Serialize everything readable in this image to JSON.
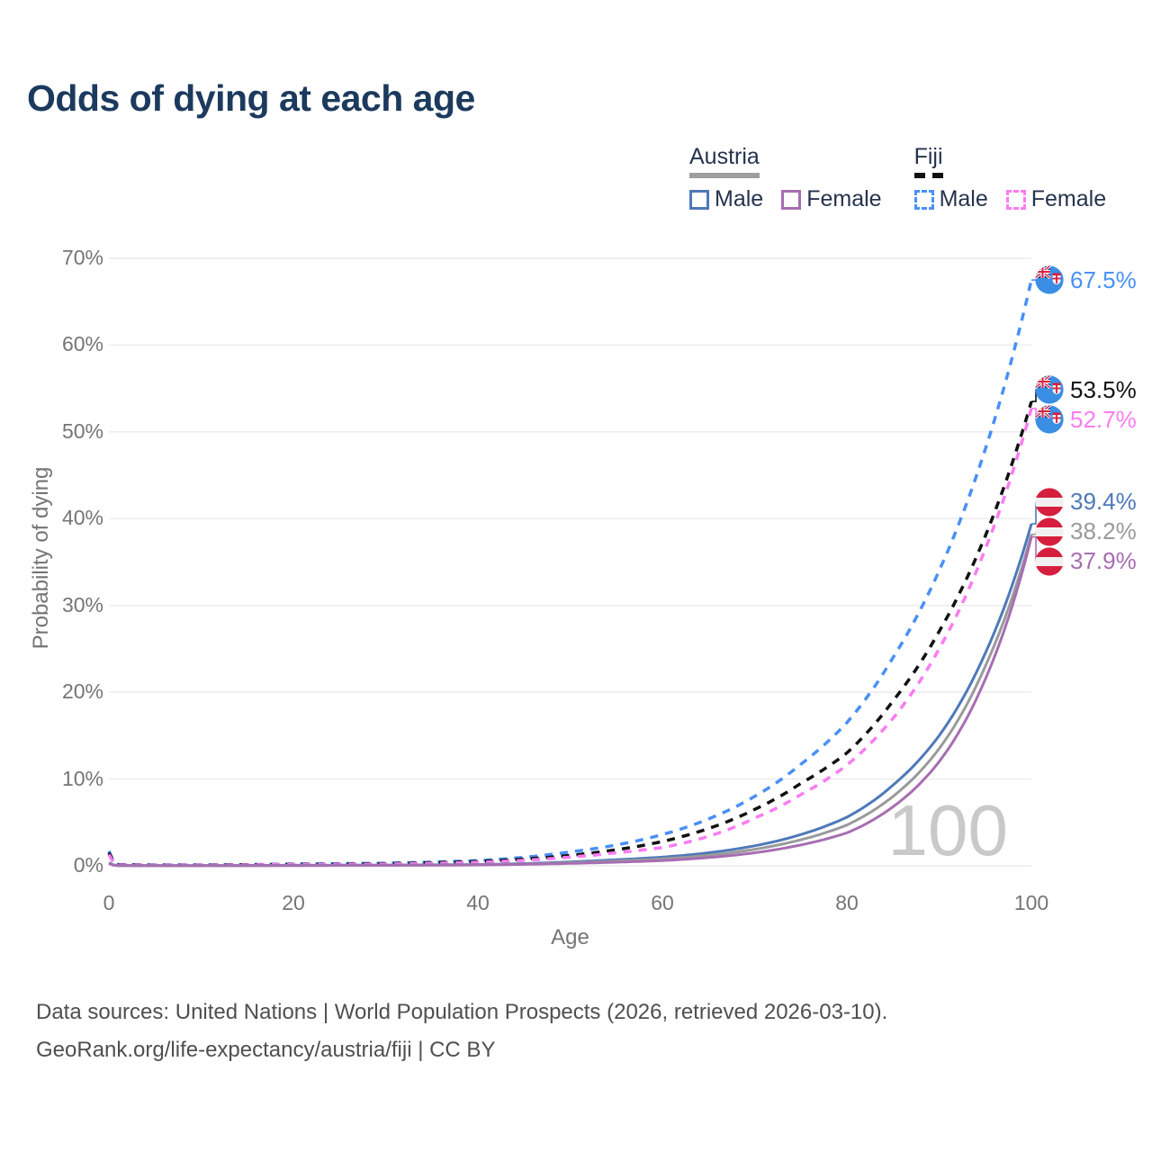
{
  "title": "Odds of dying at each age",
  "legend": {
    "groups": [
      {
        "label": "Austria",
        "line_style": "solid",
        "line_color": "#9a9a9a",
        "items": [
          {
            "label": "Male",
            "color": "#4e79b8"
          },
          {
            "label": "Female",
            "color": "#a76db2"
          }
        ]
      },
      {
        "label": "Fiji",
        "line_style": "dashed",
        "line_color": "#111111",
        "items": [
          {
            "label": "Male",
            "color": "#4a90f5"
          },
          {
            "label": "Female",
            "color": "#fb7cf2"
          }
        ]
      }
    ]
  },
  "axes": {
    "x_label": "Age",
    "y_label": "Probability of dying"
  },
  "watermark_age": "100",
  "footer": {
    "line1": "Data sources: United Nations | World Population Prospects (2026, retrieved 2026-03-10).",
    "line2": "GeoRank.org/life-expectancy/austria/fiji | CC BY"
  },
  "colors": {
    "title": "#1c3a5e",
    "tick_text": "#757575",
    "gridline": "#ececec",
    "watermark": "#c9c9c9",
    "austria_flag_red": "#d61f3e",
    "fiji_flag_blue": "#3a8ee4"
  },
  "chart_data": {
    "type": "line",
    "title": "Odds of dying at each age",
    "xlabel": "Age",
    "ylabel": "Probability of dying",
    "x_range": [
      0,
      100
    ],
    "y_range_pct": [
      0,
      70
    ],
    "x_ticks": [
      0,
      20,
      40,
      60,
      80,
      100
    ],
    "y_ticks_pct": [
      0,
      10,
      20,
      30,
      40,
      50,
      60,
      70
    ],
    "grid": "horizontal-only",
    "legend_position": "top-right",
    "ages": [
      0,
      1,
      5,
      10,
      20,
      30,
      40,
      50,
      55,
      60,
      65,
      70,
      75,
      80,
      85,
      90,
      95,
      100
    ],
    "series": [
      {
        "id": "fiji-male",
        "name": "Fiji Male",
        "country": "Fiji",
        "sex": "Male",
        "color": "#4a90f5",
        "dash": true,
        "flag": "fiji",
        "end_label": "67.5%",
        "values_pct": [
          1.7,
          0.15,
          0.1,
          0.1,
          0.2,
          0.3,
          0.6,
          1.6,
          2.4,
          3.6,
          5.4,
          8.0,
          11.7,
          16.5,
          24,
          34,
          48,
          67.5
        ]
      },
      {
        "id": "fiji-both",
        "name": "Fiji Both sexes",
        "country": "Fiji",
        "sex": "Both",
        "color": "#111111",
        "dash": true,
        "flag": "fiji",
        "end_label": "53.5%",
        "values_pct": [
          1.5,
          0.12,
          0.09,
          0.09,
          0.17,
          0.25,
          0.5,
          1.2,
          1.85,
          2.8,
          4.3,
          6.5,
          9.5,
          13.0,
          19,
          27,
          38,
          53.5
        ]
      },
      {
        "id": "fiji-female",
        "name": "Fiji Female",
        "country": "Fiji",
        "sex": "Female",
        "color": "#fb7cf2",
        "dash": true,
        "flag": "fiji",
        "end_label": "52.7%",
        "values_pct": [
          1.3,
          0.1,
          0.08,
          0.08,
          0.14,
          0.2,
          0.4,
          1.0,
          1.5,
          2.1,
          3.4,
          5.5,
          8.2,
          11.6,
          17,
          25,
          36.5,
          52.7
        ]
      },
      {
        "id": "austria-male",
        "name": "Austria Male",
        "country": "Austria",
        "sex": "Male",
        "color": "#4e79b8",
        "dash": false,
        "flag": "austria",
        "end_label": "39.4%",
        "values_pct": [
          0.35,
          0.03,
          0.02,
          0.02,
          0.06,
          0.08,
          0.15,
          0.45,
          0.7,
          1.0,
          1.5,
          2.3,
          3.6,
          5.6,
          9.3,
          15,
          24.5,
          39.4
        ]
      },
      {
        "id": "austria-both",
        "name": "Austria Both sexes",
        "country": "Austria",
        "sex": "Both",
        "color": "#9a9a9a",
        "dash": false,
        "flag": "austria",
        "end_label": "38.2%",
        "values_pct": [
          0.3,
          0.025,
          0.015,
          0.015,
          0.045,
          0.06,
          0.12,
          0.35,
          0.55,
          0.8,
          1.2,
          1.9,
          3.0,
          4.7,
          8.0,
          13.5,
          23,
          38.2
        ]
      },
      {
        "id": "austria-female",
        "name": "Austria Female",
        "country": "Austria",
        "sex": "Female",
        "color": "#a76db2",
        "dash": false,
        "flag": "austria",
        "end_label": "37.9%",
        "values_pct": [
          0.27,
          0.02,
          0.012,
          0.012,
          0.03,
          0.05,
          0.1,
          0.28,
          0.42,
          0.6,
          0.95,
          1.5,
          2.4,
          3.8,
          6.8,
          12,
          21.5,
          37.9
        ]
      }
    ]
  }
}
